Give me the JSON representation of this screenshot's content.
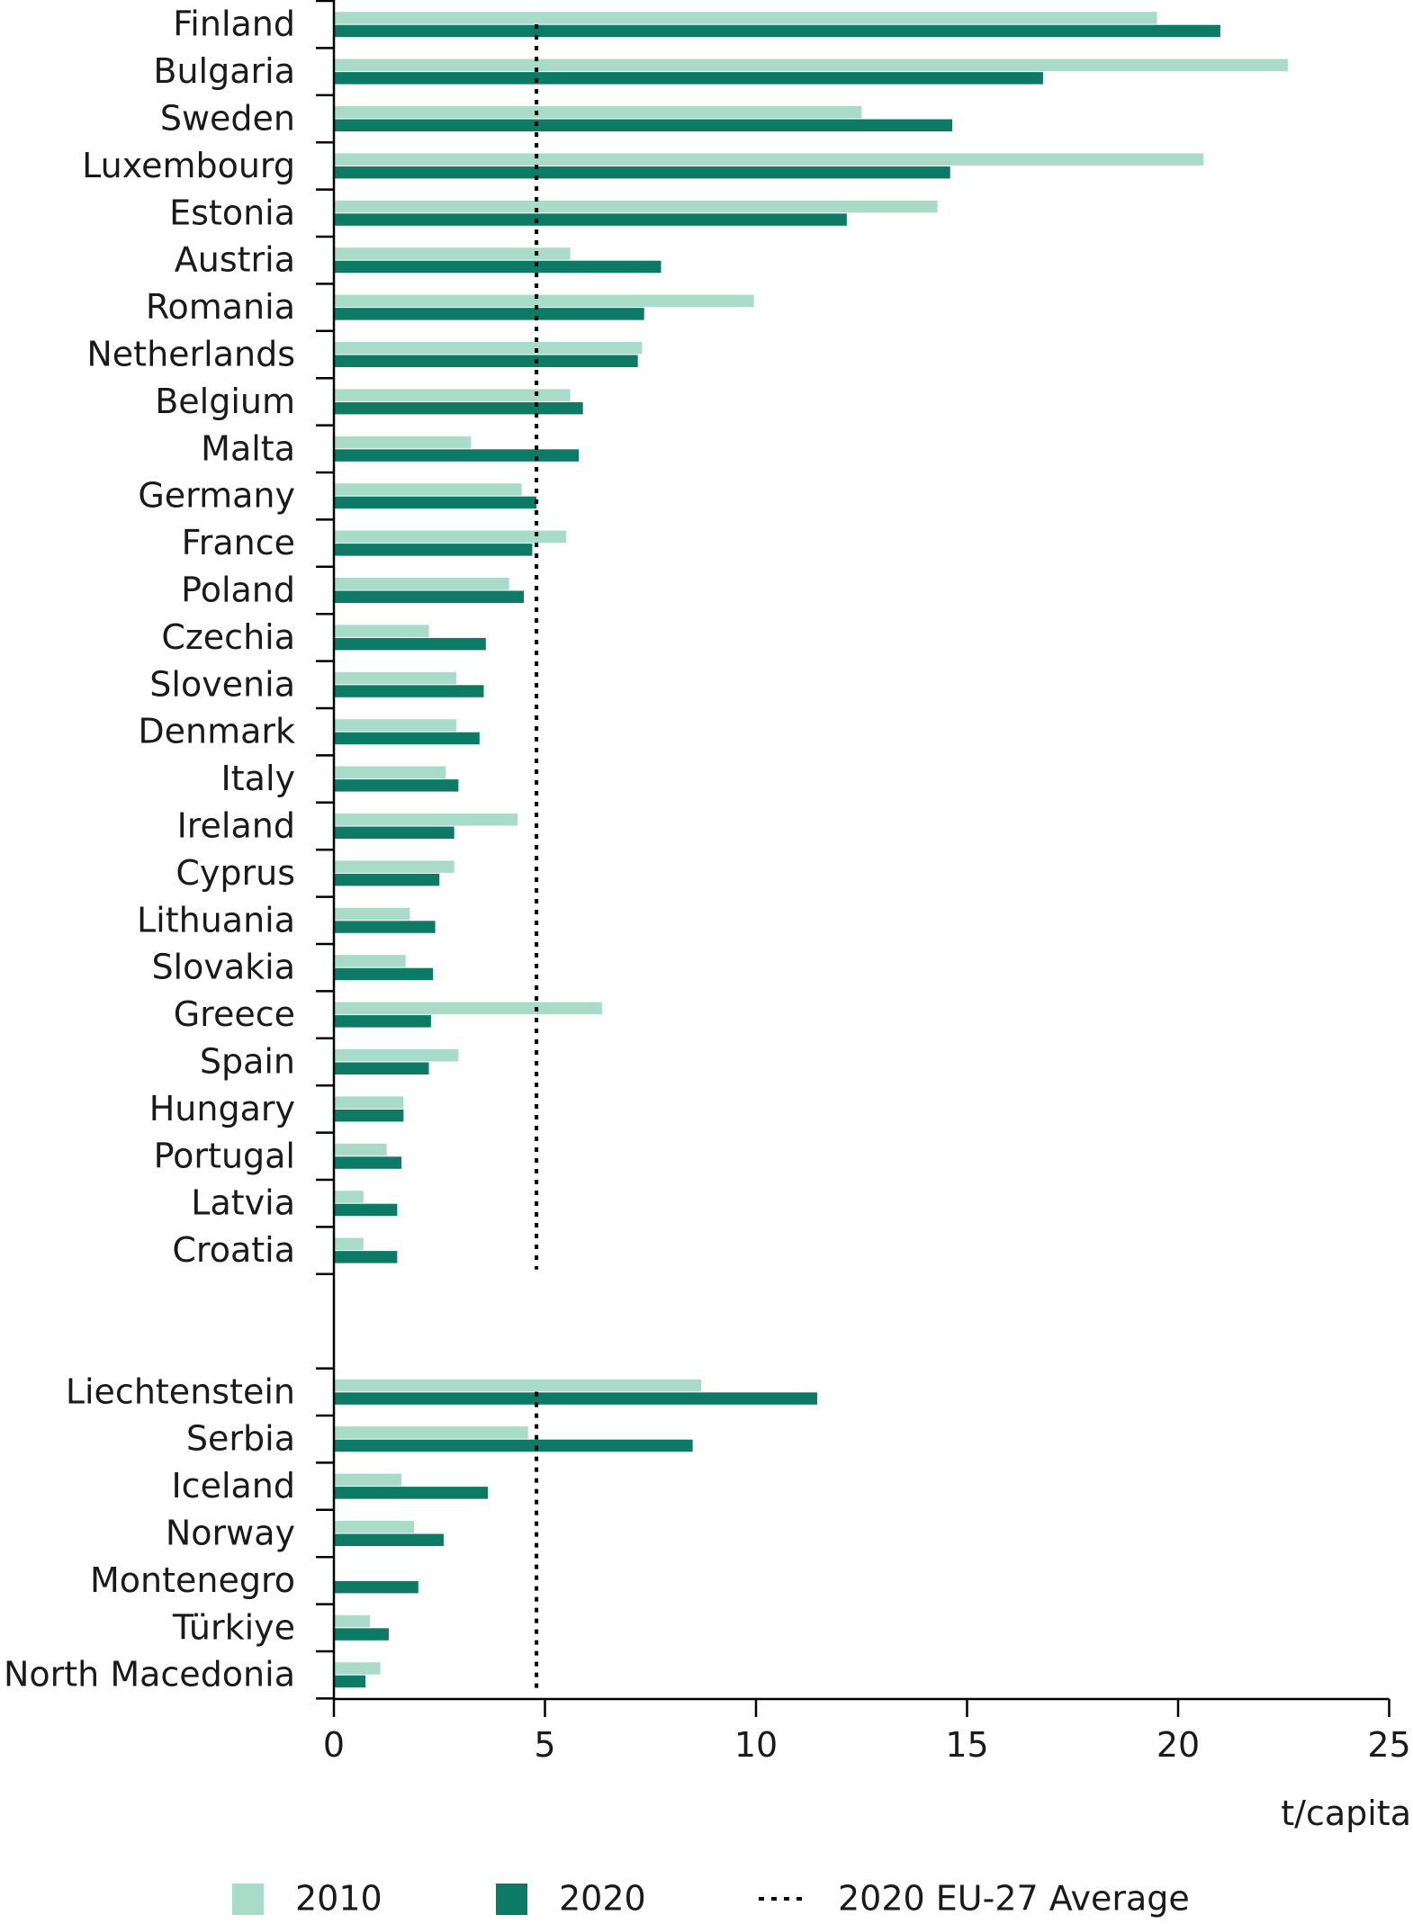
{
  "chart_data": {
    "type": "bar",
    "orientation": "horizontal",
    "title": "",
    "xlabel": "t/capita",
    "ylabel": "",
    "xlim": [
      0,
      25
    ],
    "xticks": [
      "0",
      "5",
      "10",
      "15",
      "20",
      "25"
    ],
    "grid": false,
    "legend_position": "bottom",
    "colors": {
      "2010": "#a8dbc8",
      "2020": "#0d7a66",
      "average": "#000000"
    },
    "groups": [
      {
        "categories": [
          "Finland",
          "Bulgaria",
          "Sweden",
          "Luxembourg",
          "Estonia",
          "Austria",
          "Romania",
          "Netherlands",
          "Belgium",
          "Malta",
          "Germany",
          "France",
          "Poland",
          "Czechia",
          "Slovenia",
          "Denmark",
          "Italy",
          "Ireland",
          "Cyprus",
          "Lithuania",
          "Slovakia",
          "Greece",
          "Spain",
          "Hungary",
          "Portugal",
          "Latvia",
          "Croatia"
        ],
        "series": [
          {
            "name": "2010",
            "values": [
              19.5,
              22.6,
              12.5,
              20.6,
              14.3,
              5.6,
              9.95,
              7.3,
              5.6,
              3.25,
              4.45,
              5.5,
              4.15,
              2.25,
              2.9,
              2.9,
              2.65,
              4.35,
              2.85,
              1.8,
              1.7,
              6.35,
              2.95,
              1.65,
              1.25,
              0.7,
              0.7
            ]
          },
          {
            "name": "2020",
            "values": [
              21.0,
              16.8,
              14.65,
              14.6,
              12.15,
              7.75,
              7.35,
              7.2,
              5.9,
              5.8,
              4.8,
              4.7,
              4.5,
              3.6,
              3.55,
              3.45,
              2.95,
              2.85,
              2.5,
              2.4,
              2.35,
              2.3,
              2.25,
              1.65,
              1.6,
              1.5,
              1.5
            ]
          }
        ],
        "average": 4.8
      },
      {
        "categories": [
          "Liechtenstein",
          "Serbia",
          "Iceland",
          "Norway",
          "Montenegro",
          "Türkiye",
          "North Macedonia"
        ],
        "series": [
          {
            "name": "2010",
            "values": [
              8.7,
              4.6,
              1.6,
              1.9,
              null,
              0.85,
              1.1
            ]
          },
          {
            "name": "2020",
            "values": [
              11.45,
              8.5,
              3.65,
              2.6,
              2.0,
              1.3,
              0.75
            ]
          }
        ],
        "average": 4.8
      }
    ],
    "legend": [
      {
        "key": "2010",
        "label": "2010",
        "symbol": "square"
      },
      {
        "key": "2020",
        "label": "2020",
        "symbol": "square"
      },
      {
        "key": "average",
        "label": "2020 EU-27 Average",
        "symbol": "dotted-line"
      }
    ]
  }
}
